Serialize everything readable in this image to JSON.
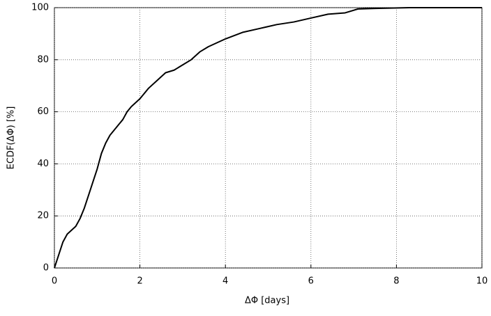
{
  "chart_data": {
    "type": "line",
    "xlabel": "ΔΦ [days]",
    "ylabel": "ECDF(ΔΦ) [%]",
    "x": [
      0,
      0.1,
      0.2,
      0.3,
      0.5,
      0.6,
      0.7,
      0.8,
      0.9,
      1.0,
      1.1,
      1.2,
      1.3,
      1.4,
      1.5,
      1.6,
      1.7,
      1.8,
      2.0,
      2.2,
      2.4,
      2.6,
      2.8,
      3.0,
      3.2,
      3.4,
      3.6,
      3.8,
      4.0,
      4.4,
      4.8,
      5.2,
      5.6,
      6.0,
      6.4,
      6.8,
      7.1,
      7.5,
      8.3,
      10
    ],
    "values": [
      0,
      5,
      10,
      13,
      16,
      19,
      23,
      28,
      33,
      38,
      44,
      48,
      51,
      53,
      55,
      57,
      60,
      62,
      65,
      69,
      72,
      75,
      76,
      78,
      80,
      83,
      85,
      86.5,
      88,
      90.5,
      92,
      93.5,
      94.5,
      96,
      97.5,
      98,
      99.5,
      99.7,
      100,
      100
    ],
    "color": "#000000",
    "xlim": [
      0,
      10
    ],
    "xticks": [
      0,
      2,
      4,
      6,
      8,
      10
    ],
    "ylim": [
      0,
      100
    ],
    "yticks": [
      0,
      20,
      40,
      60,
      80,
      100
    ],
    "grid": true
  }
}
